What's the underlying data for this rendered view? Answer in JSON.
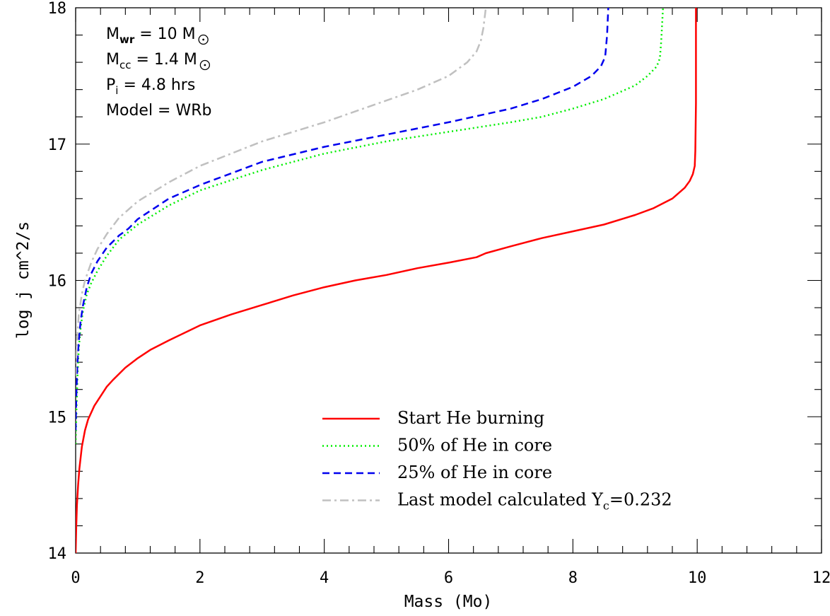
{
  "chart_data": {
    "type": "line",
    "xlabel": "Mass (Mo)",
    "ylabel": "log j cm^2/s",
    "xlim": [
      0,
      12
    ],
    "ylim": [
      14,
      18
    ],
    "x_ticks": [
      "0",
      "2",
      "4",
      "6",
      "8",
      "10",
      "12"
    ],
    "y_ticks": [
      "14",
      "15",
      "16",
      "17",
      "18"
    ],
    "x_minor_step": 0.4,
    "y_minor_step": 0.2,
    "grid": false,
    "legend_position": "bottom-right",
    "annotations": [
      {
        "text": "M",
        "sub": "wr",
        "rest": " = 10 M",
        "sun": true
      },
      {
        "text": "M",
        "sub": "cc",
        "rest": " = 1.4 M",
        "sun": true
      },
      {
        "text": "P",
        "sub": "i",
        "rest": " = 4.8 hrs",
        "sun": false
      },
      {
        "text": "Model = WRb",
        "sub": "",
        "rest": "",
        "sun": false
      }
    ],
    "series": [
      {
        "name": "Start He burning",
        "color": "#ff0000",
        "dash": "solid",
        "x": [
          0.0,
          0.01,
          0.02,
          0.04,
          0.06,
          0.1,
          0.15,
          0.2,
          0.3,
          0.4,
          0.5,
          0.6,
          0.8,
          1.0,
          1.2,
          1.5,
          2.0,
          2.5,
          3.0,
          3.5,
          4.0,
          4.5,
          5.0,
          5.5,
          6.0,
          6.45,
          6.6,
          7.0,
          7.5,
          8.0,
          8.5,
          9.0,
          9.3,
          9.6,
          9.8,
          9.88,
          9.93,
          9.96,
          9.97,
          9.98,
          9.98
        ],
        "y": [
          14.0,
          14.2,
          14.35,
          14.5,
          14.62,
          14.78,
          14.9,
          14.98,
          15.08,
          15.15,
          15.22,
          15.27,
          15.36,
          15.43,
          15.49,
          15.56,
          15.67,
          15.75,
          15.82,
          15.89,
          15.95,
          16.0,
          16.04,
          16.09,
          16.13,
          16.17,
          16.2,
          16.25,
          16.31,
          16.36,
          16.41,
          16.48,
          16.53,
          16.6,
          16.68,
          16.73,
          16.78,
          16.84,
          16.95,
          17.3,
          18.0
        ]
      },
      {
        "name": "50% of He in core",
        "color": "#00ee00",
        "dash": "dotted",
        "x": [
          0.0,
          0.01,
          0.03,
          0.05,
          0.08,
          0.12,
          0.18,
          0.25,
          0.35,
          0.5,
          0.7,
          1.0,
          1.5,
          2.0,
          3.0,
          4.0,
          5.0,
          6.0,
          7.0,
          7.5,
          8.0,
          8.5,
          9.0,
          9.2,
          9.35,
          9.4,
          9.42,
          9.45
        ],
        "y": [
          14.8,
          15.0,
          15.3,
          15.5,
          15.65,
          15.78,
          15.9,
          15.98,
          16.07,
          16.18,
          16.3,
          16.41,
          16.55,
          16.66,
          16.81,
          16.93,
          17.02,
          17.09,
          17.16,
          17.2,
          17.26,
          17.33,
          17.43,
          17.5,
          17.57,
          17.63,
          17.75,
          18.0
        ]
      },
      {
        "name": "25% of He in core",
        "color": "#0000ee",
        "dash": "dashed",
        "x": [
          0.0,
          0.01,
          0.03,
          0.05,
          0.08,
          0.12,
          0.18,
          0.25,
          0.35,
          0.5,
          0.7,
          0.85,
          1.0,
          1.5,
          2.0,
          3.0,
          4.0,
          5.0,
          6.0,
          7.0,
          7.5,
          8.0,
          8.3,
          8.45,
          8.52,
          8.55,
          8.57
        ],
        "y": [
          14.9,
          15.15,
          15.4,
          15.55,
          15.7,
          15.82,
          15.95,
          16.05,
          16.14,
          16.24,
          16.33,
          16.38,
          16.45,
          16.6,
          16.7,
          16.87,
          16.98,
          17.07,
          17.16,
          17.26,
          17.33,
          17.42,
          17.5,
          17.57,
          17.64,
          17.8,
          18.0
        ]
      },
      {
        "name": "Last model calculated Y_c=0.232",
        "color": "#c0c0c0",
        "dash": "dashdot",
        "x": [
          0.0,
          0.02,
          0.05,
          0.1,
          0.15,
          0.25,
          0.35,
          0.5,
          0.7,
          1.0,
          1.5,
          2.0,
          3.0,
          4.0,
          5.0,
          5.5,
          6.0,
          6.3,
          6.45,
          6.52,
          6.56,
          6.6
        ],
        "y": [
          15.3,
          15.55,
          15.75,
          15.9,
          16.0,
          16.13,
          16.23,
          16.34,
          16.46,
          16.58,
          16.72,
          16.84,
          17.02,
          17.16,
          17.32,
          17.4,
          17.5,
          17.6,
          17.68,
          17.76,
          17.85,
          18.0
        ]
      }
    ]
  }
}
